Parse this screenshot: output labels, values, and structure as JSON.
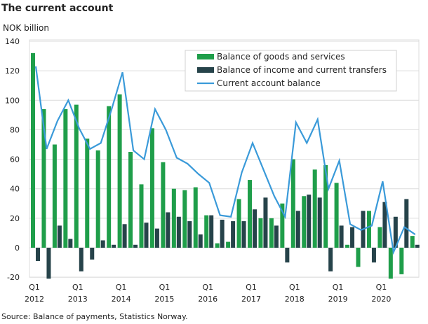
{
  "title": "The current account",
  "source": "Source: Balance of payments, Statistics Norway.",
  "colors": {
    "goods": "#1f9e4a",
    "income": "#26434a",
    "current": "#3a9ad9"
  },
  "chart_data": {
    "type": "bar",
    "ylabel": "NOK billion",
    "ylim": [
      -20,
      140
    ],
    "yticks": [
      -20,
      0,
      20,
      40,
      60,
      80,
      100,
      120,
      140
    ],
    "grid": true,
    "legend_position": "top-right",
    "x_tick_labels": [
      [
        "Q1",
        "2012"
      ],
      [
        "Q1",
        "2013"
      ],
      [
        "Q1",
        "2014"
      ],
      [
        "Q1",
        "2015"
      ],
      [
        "Q1",
        "2016"
      ],
      [
        "Q1",
        "2017"
      ],
      [
        "Q1",
        "2018"
      ],
      [
        "Q1",
        "2019"
      ],
      [
        "Q1",
        "2020"
      ]
    ],
    "series": [
      {
        "name": "Balance of goods and services",
        "type": "bar",
        "values": [
          132,
          94,
          70,
          94,
          97,
          74,
          66,
          96,
          104,
          65,
          43,
          81,
          58,
          40,
          39,
          41,
          22,
          3,
          4,
          33,
          46,
          20,
          20,
          30,
          60,
          35,
          53,
          56,
          44,
          2,
          -13,
          25,
          14,
          -21,
          -18,
          8
        ]
      },
      {
        "name": "Balance of income and current transfers",
        "type": "bar",
        "values": [
          -9,
          -21,
          15,
          6,
          -16,
          -8,
          5,
          2,
          16,
          2,
          17,
          13,
          24,
          21,
          18,
          9,
          22,
          19,
          18,
          18,
          26,
          34,
          15,
          -10,
          25,
          36,
          34,
          -16,
          15,
          14,
          25,
          -10,
          31,
          21,
          33,
          2
        ]
      },
      {
        "name": "Current account balance",
        "type": "line",
        "values": [
          123,
          67,
          86,
          100,
          81,
          67,
          71,
          94,
          119,
          66,
          60,
          94,
          80,
          61,
          57,
          50,
          44,
          22,
          21,
          51,
          71,
          53,
          35,
          21,
          85,
          71,
          87,
          40,
          59,
          16,
          12,
          15,
          45,
          -3,
          14,
          9
        ]
      }
    ]
  }
}
